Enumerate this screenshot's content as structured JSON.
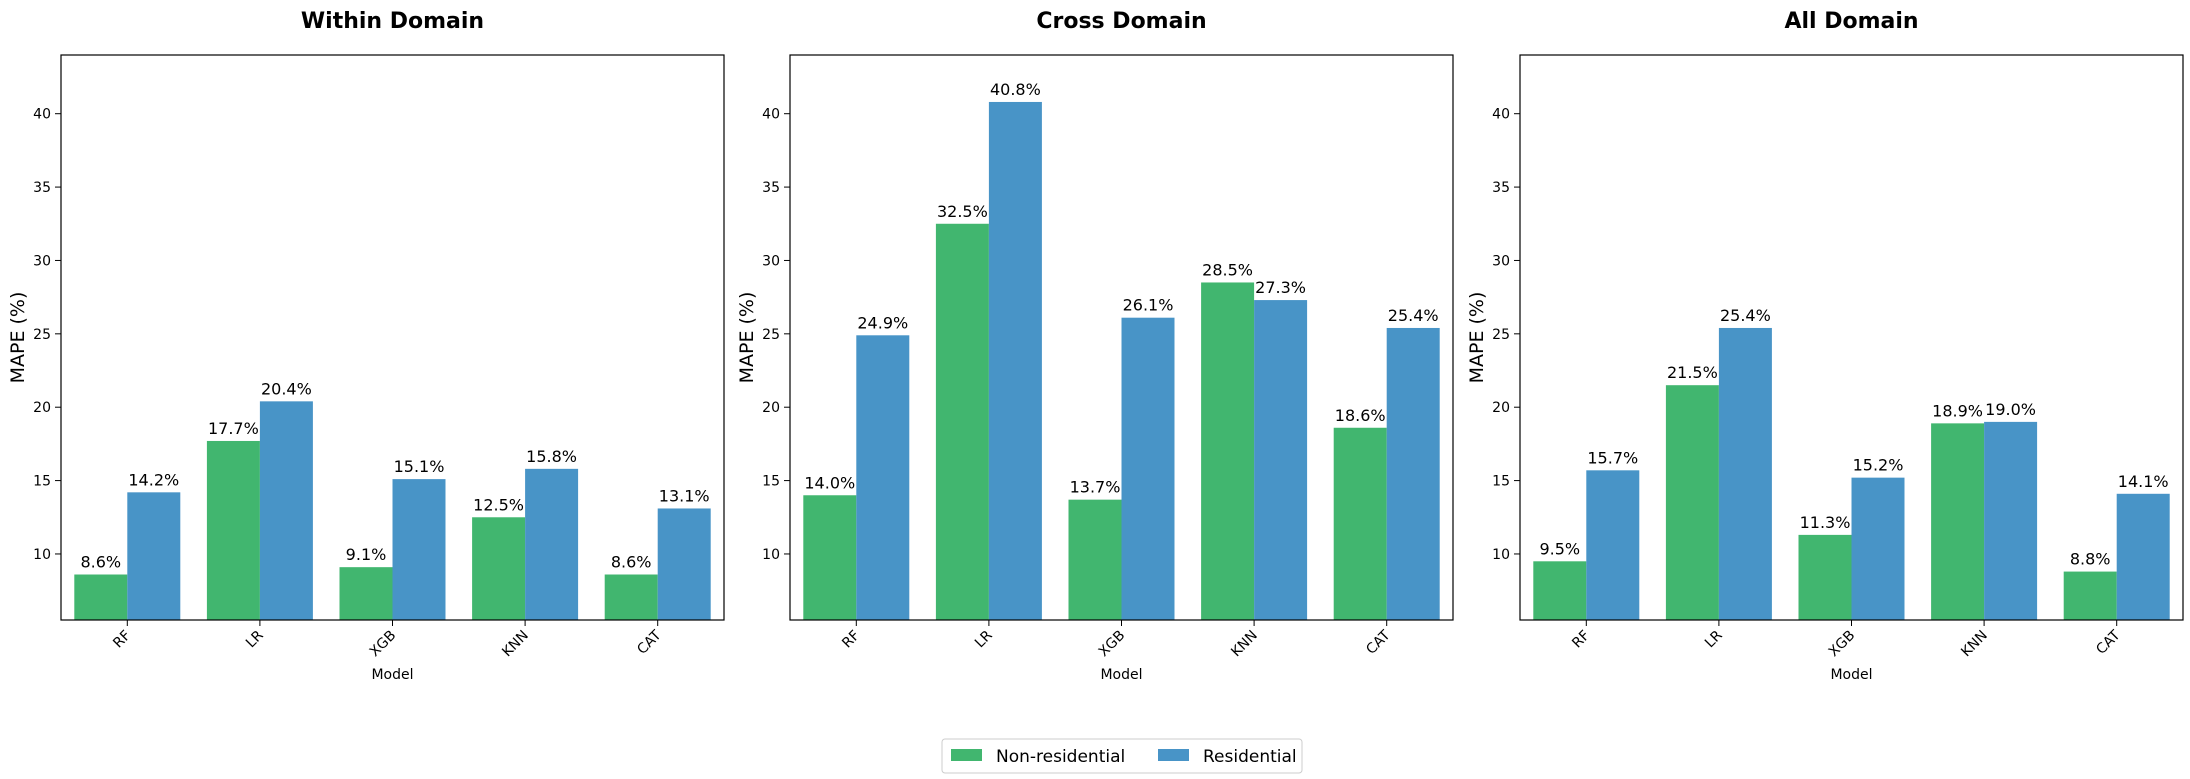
{
  "chart_data": [
    {
      "type": "bar",
      "title": "Within Domain",
      "xlabel": "Model",
      "ylabel": "MAPE (%)",
      "ylim": [
        5.5,
        44
      ],
      "yticks": [
        10,
        15,
        20,
        25,
        30,
        35,
        40
      ],
      "categories": [
        "RF",
        "LR",
        "XGB",
        "KNN",
        "CAT"
      ],
      "series": [
        {
          "name": "Non-residential",
          "values": [
            8.6,
            17.7,
            9.1,
            12.5,
            8.6
          ],
          "labels": [
            "8.6%",
            "17.7%",
            "9.1%",
            "12.5%",
            "8.6%"
          ]
        },
        {
          "name": "Residential",
          "values": [
            14.2,
            20.4,
            15.1,
            15.8,
            13.1
          ],
          "labels": [
            "14.2%",
            "20.4%",
            "15.1%",
            "15.8%",
            "13.1%"
          ]
        }
      ]
    },
    {
      "type": "bar",
      "title": "Cross Domain",
      "xlabel": "Model",
      "ylabel": "MAPE (%)",
      "ylim": [
        5.5,
        44
      ],
      "yticks": [
        10,
        15,
        20,
        25,
        30,
        35,
        40
      ],
      "categories": [
        "RF",
        "LR",
        "XGB",
        "KNN",
        "CAT"
      ],
      "series": [
        {
          "name": "Non-residential",
          "values": [
            14.0,
            32.5,
            13.7,
            28.5,
            18.6
          ],
          "labels": [
            "14.0%",
            "32.5%",
            "13.7%",
            "28.5%",
            "18.6%"
          ]
        },
        {
          "name": "Residential",
          "values": [
            24.9,
            40.8,
            26.1,
            27.3,
            25.4
          ],
          "labels": [
            "24.9%",
            "40.8%",
            "26.1%",
            "27.3%",
            "25.4%"
          ]
        }
      ]
    },
    {
      "type": "bar",
      "title": "All Domain",
      "xlabel": "Model",
      "ylabel": "MAPE (%)",
      "ylim": [
        5.5,
        44
      ],
      "yticks": [
        10,
        15,
        20,
        25,
        30,
        35,
        40
      ],
      "categories": [
        "RF",
        "LR",
        "XGB",
        "KNN",
        "CAT"
      ],
      "series": [
        {
          "name": "Non-residential",
          "values": [
            9.5,
            21.5,
            11.3,
            18.9,
            8.8
          ],
          "labels": [
            "9.5%",
            "21.5%",
            "11.3%",
            "18.9%",
            "8.8%"
          ]
        },
        {
          "name": "Residential",
          "values": [
            15.7,
            25.4,
            15.2,
            19.0,
            14.1
          ],
          "labels": [
            "15.7%",
            "25.4%",
            "15.2%",
            "19.0%",
            "14.1%"
          ]
        }
      ]
    }
  ],
  "legend": {
    "placement": "bottom-center",
    "items": [
      {
        "label": "Non-residential",
        "color": "#41b66f"
      },
      {
        "label": "Residential",
        "color": "#4894c7"
      }
    ]
  },
  "colors": {
    "non_residential": "#41b66f",
    "residential": "#4894c7"
  }
}
